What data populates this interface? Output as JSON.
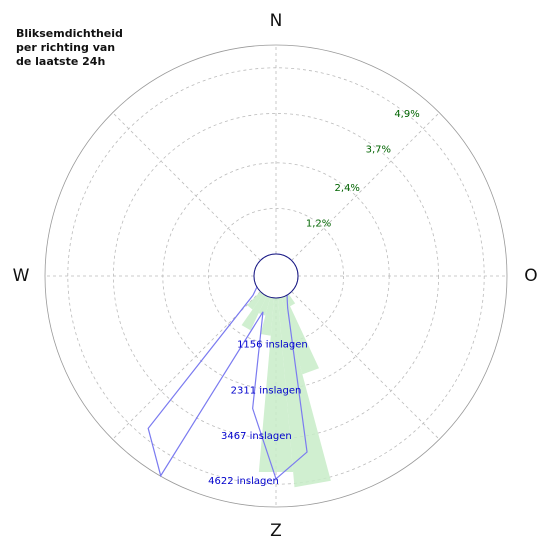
{
  "chart_data": {
    "type": "polar",
    "title_lines": [
      "Bliksemdichtheid",
      "per richting van",
      "de laatste 24h"
    ],
    "directions": [
      "N",
      "O",
      "Z",
      "W"
    ],
    "theta": [
      0,
      10,
      20,
      30,
      40,
      50,
      60,
      70,
      80,
      90,
      100,
      110,
      120,
      130,
      140,
      150,
      160,
      170,
      180,
      190,
      200,
      210,
      220,
      230,
      240,
      250,
      260,
      270,
      280,
      290,
      300,
      310,
      320,
      330,
      340,
      350
    ],
    "series": [
      {
        "color": "#c8ecc8",
        "axis": "r",
        "values": [
          0,
          0,
          0,
          0,
          0,
          0,
          0,
          0,
          0,
          0,
          0,
          0,
          0,
          0,
          0,
          0.3,
          2.1,
          5.0,
          4.6,
          1.0,
          0.5,
          1.0,
          0.5,
          0,
          0,
          0,
          0,
          0,
          0,
          0,
          0,
          0,
          0,
          0,
          0,
          0
        ]
      },
      {
        "color": "#7b7bf0",
        "axis": "r2",
        "values": [
          0,
          0,
          0,
          0,
          0,
          0,
          0,
          0,
          0,
          0,
          0,
          0,
          0,
          0,
          0,
          0,
          300,
          3900,
          4500,
          2800,
          400,
          5190,
          4400,
          200,
          0,
          0,
          0,
          0,
          0,
          0,
          0,
          0,
          0,
          0,
          0,
          0
        ]
      }
    ],
    "rlim": [
      0,
      5.5
    ],
    "rticks": [
      {
        "value": 1.2,
        "label": "1,2%"
      },
      {
        "value": 2.4,
        "label": "2,4%"
      },
      {
        "value": 3.7,
        "label": "3,7%"
      },
      {
        "value": 4.9,
        "label": "4,9%"
      }
    ],
    "r2lim": [
      0,
      5200
    ],
    "r2ticks": [
      {
        "value": 1156,
        "label": "1156 inslagen"
      },
      {
        "value": 2311,
        "label": "2311 inslagen"
      },
      {
        "value": 3467,
        "label": "3467 inslagen"
      },
      {
        "value": 4622,
        "label": "4622 inslagen"
      }
    ],
    "grid": true
  }
}
